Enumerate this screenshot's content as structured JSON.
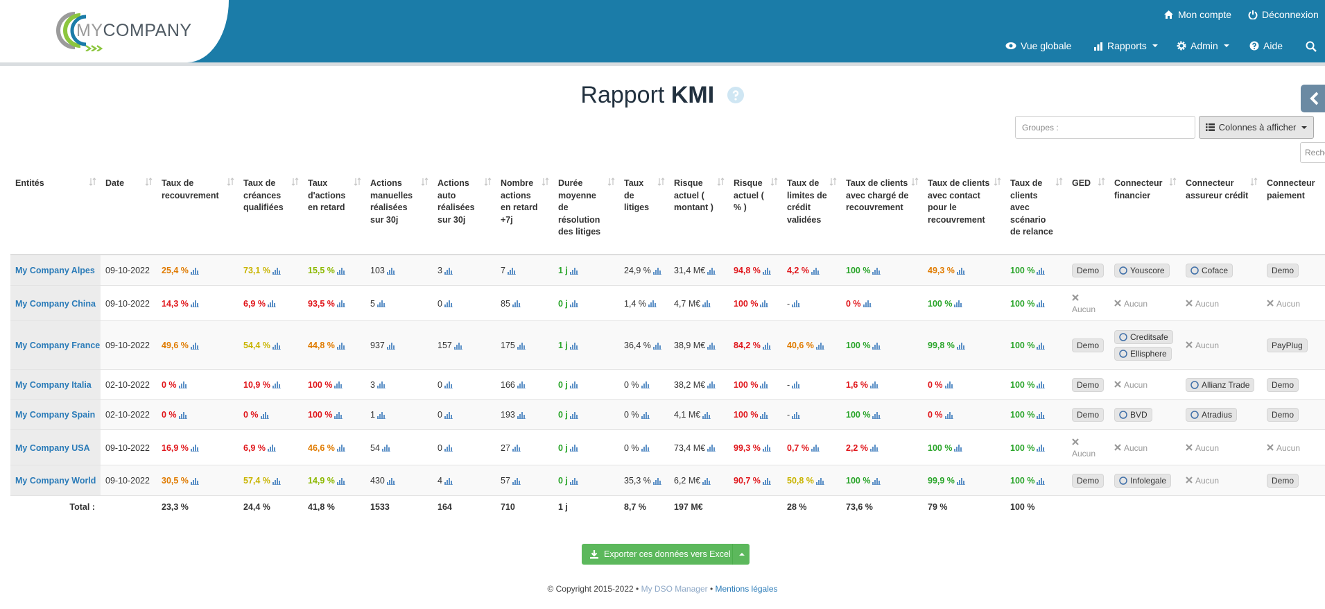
{
  "logo": {
    "my": "MY",
    "company": "COMPANY"
  },
  "nav": {
    "top": [
      "Mon compte",
      "Déconnexion"
    ],
    "main": [
      "Vue globale",
      "Rapports",
      "Admin",
      "Aide"
    ]
  },
  "page": {
    "title_prefix": "Rapport",
    "title_bold": "KMI",
    "groups_placeholder": "Groupes :",
    "columns_button": "Colonnes à afficher",
    "search_placeholder": "Reche"
  },
  "table": {
    "columns": [
      "Entités",
      "Date",
      "Taux de recouvrement",
      "Taux de créances qualifiées",
      "Taux d'actions en retard",
      "Actions manuelles réalisées sur 30j",
      "Actions auto réalisées sur 30j",
      "Nombre actions en retard +7j",
      "Durée moyenne de résolution des litiges",
      "Taux de litiges",
      "Risque actuel ( montant )",
      "Risque actuel ( % )",
      "Taux de limites de crédit validées",
      "Taux de clients avec chargé de recouvrement",
      "Taux de clients avec contact pour le recouvrement",
      "Taux de clients avec scénario de relance",
      "GED",
      "Connecteur financier",
      "Connecteur assureur crédit",
      "Connecteur paiement"
    ],
    "rows": [
      {
        "entity": "My Company Alpes",
        "date": "09-10-2022",
        "metrics": [
          {
            "text": "25,4 %",
            "color": "#e07b00"
          },
          {
            "text": "73,1 %",
            "color": "#c9b400"
          },
          {
            "text": "15,5 %",
            "color": "#8cb800"
          },
          "103",
          "3",
          "7",
          {
            "text": "1 j",
            "color": "#2aa52a"
          },
          "24,9 %",
          "31,4 M€",
          {
            "text": "94,8 %",
            "color": "#e0161b"
          },
          {
            "text": "4,2 %",
            "color": "#e0161b"
          },
          {
            "text": "100 %",
            "color": "#2aa52a"
          },
          {
            "text": "49,3 %",
            "color": "#e07b00"
          },
          {
            "text": "100 %",
            "color": "#2aa52a"
          }
        ],
        "ged": {
          "badges": [
            "Demo"
          ]
        },
        "financier": {
          "badges": [
            "Youscore"
          ]
        },
        "assureur": {
          "badges": [
            "Coface"
          ]
        },
        "paiement": {
          "badges": [
            "Demo"
          ]
        }
      },
      {
        "entity": "My Company China",
        "date": "09-10-2022",
        "metrics": [
          {
            "text": "14,3 %",
            "color": "#e0161b"
          },
          {
            "text": "6,9 %",
            "color": "#e0161b"
          },
          {
            "text": "93,5 %",
            "color": "#e0161b"
          },
          "5",
          "0",
          "85",
          {
            "text": "0 j",
            "color": "#2aa52a"
          },
          "1,4 %",
          "4,7 M€",
          {
            "text": "100 %",
            "color": "#e0161b"
          },
          "-",
          {
            "text": "0 %",
            "color": "#e0161b"
          },
          {
            "text": "100 %",
            "color": "#2aa52a"
          },
          {
            "text": "100 %",
            "color": "#2aa52a"
          }
        ],
        "ged": {
          "none": "Aucun"
        },
        "financier": {
          "none": "Aucun"
        },
        "assureur": {
          "none": "Aucun"
        },
        "paiement": {
          "none": "Aucun"
        }
      },
      {
        "entity": "My Company France",
        "date": "09-10-2022",
        "metrics": [
          {
            "text": "49,6 %",
            "color": "#e07b00"
          },
          {
            "text": "54,4 %",
            "color": "#c9b400"
          },
          {
            "text": "44,8 %",
            "color": "#e07b00"
          },
          "937",
          "157",
          "175",
          {
            "text": "1 j",
            "color": "#2aa52a"
          },
          "36,4 %",
          "38,9 M€",
          {
            "text": "84,2 %",
            "color": "#e0161b"
          },
          {
            "text": "40,6 %",
            "color": "#e07b00"
          },
          {
            "text": "100 %",
            "color": "#2aa52a"
          },
          {
            "text": "99,8 %",
            "color": "#2aa52a"
          },
          {
            "text": "100 %",
            "color": "#2aa52a"
          }
        ],
        "ged": {
          "badges": [
            "Demo"
          ]
        },
        "financier": {
          "badges": [
            "Creditsafe",
            "Ellisphere"
          ]
        },
        "assureur": {
          "none": "Aucun"
        },
        "paiement": {
          "badges": [
            "PayPlug"
          ]
        }
      },
      {
        "entity": "My Company Italia",
        "date": "02-10-2022",
        "metrics": [
          {
            "text": "0 %",
            "color": "#e0161b"
          },
          {
            "text": "10,9 %",
            "color": "#e0161b"
          },
          {
            "text": "100 %",
            "color": "#e0161b"
          },
          "3",
          "0",
          "166",
          {
            "text": "0 j",
            "color": "#2aa52a"
          },
          "0 %",
          "38,2 M€",
          {
            "text": "100 %",
            "color": "#e0161b"
          },
          "-",
          {
            "text": "1,6 %",
            "color": "#e0161b"
          },
          {
            "text": "0 %",
            "color": "#e0161b"
          },
          {
            "text": "100 %",
            "color": "#2aa52a"
          }
        ],
        "ged": {
          "badges": [
            "Demo"
          ]
        },
        "financier": {
          "none": "Aucun"
        },
        "assureur": {
          "badges": [
            "Allianz Trade"
          ]
        },
        "paiement": {
          "badges": [
            "Demo"
          ]
        }
      },
      {
        "entity": "My Company Spain",
        "date": "02-10-2022",
        "metrics": [
          {
            "text": "0 %",
            "color": "#e0161b"
          },
          {
            "text": "0 %",
            "color": "#e0161b"
          },
          {
            "text": "100 %",
            "color": "#e0161b"
          },
          "1",
          "0",
          "193",
          {
            "text": "0 j",
            "color": "#2aa52a"
          },
          "0 %",
          "4,1 M€",
          {
            "text": "100 %",
            "color": "#e0161b"
          },
          "-",
          {
            "text": "100 %",
            "color": "#2aa52a"
          },
          {
            "text": "0 %",
            "color": "#e0161b"
          },
          {
            "text": "100 %",
            "color": "#2aa52a"
          }
        ],
        "ged": {
          "badges": [
            "Demo"
          ]
        },
        "financier": {
          "badges": [
            "BVD"
          ]
        },
        "assureur": {
          "badges": [
            "Atradius"
          ]
        },
        "paiement": {
          "badges": [
            "Demo"
          ]
        }
      },
      {
        "entity": "My Company USA",
        "date": "09-10-2022",
        "metrics": [
          {
            "text": "16,9 %",
            "color": "#e0161b"
          },
          {
            "text": "6,9 %",
            "color": "#e0161b"
          },
          {
            "text": "46,6 %",
            "color": "#e07b00"
          },
          "54",
          "0",
          "27",
          {
            "text": "0 j",
            "color": "#2aa52a"
          },
          "0 %",
          "73,4 M€",
          {
            "text": "99,3 %",
            "color": "#e0161b"
          },
          {
            "text": "0,7 %",
            "color": "#e0161b"
          },
          {
            "text": "2,2 %",
            "color": "#e0161b"
          },
          {
            "text": "100 %",
            "color": "#2aa52a"
          },
          {
            "text": "100 %",
            "color": "#2aa52a"
          }
        ],
        "ged": {
          "none": "Aucun"
        },
        "financier": {
          "none": "Aucun"
        },
        "assureur": {
          "none": "Aucun"
        },
        "paiement": {
          "none": "Aucun"
        }
      },
      {
        "entity": "My Company World",
        "date": "09-10-2022",
        "metrics": [
          {
            "text": "30,5 %",
            "color": "#e07b00"
          },
          {
            "text": "57,4 %",
            "color": "#c9b400"
          },
          {
            "text": "14,9 %",
            "color": "#8cb800"
          },
          "430",
          "4",
          "57",
          {
            "text": "0 j",
            "color": "#2aa52a"
          },
          "35,3 %",
          "6,2 M€",
          {
            "text": "90,7 %",
            "color": "#e0161b"
          },
          {
            "text": "50,8 %",
            "color": "#c9b400"
          },
          {
            "text": "100 %",
            "color": "#2aa52a"
          },
          {
            "text": "99,9 %",
            "color": "#2aa52a"
          },
          {
            "text": "100 %",
            "color": "#2aa52a"
          }
        ],
        "ged": {
          "badges": [
            "Demo"
          ]
        },
        "financier": {
          "badges": [
            "Infolegale"
          ]
        },
        "assureur": {
          "none": "Aucun"
        },
        "paiement": {
          "badges": [
            "Demo"
          ]
        }
      }
    ],
    "total_label": "Total :",
    "totals": [
      "23,3 %",
      "24,4 %",
      "41,8 %",
      "1533",
      "164",
      "710",
      "1 j",
      "8,7 %",
      "197 M€",
      null,
      "28 %",
      "73,6 %",
      "79 %",
      "100 %"
    ]
  },
  "export_button": "Exporter ces données vers Excel",
  "footer": {
    "copyright": "© Copyright 2015-2022 •",
    "product": "My DSO Manager",
    "separator": "•",
    "legal": "Mentions légales"
  }
}
